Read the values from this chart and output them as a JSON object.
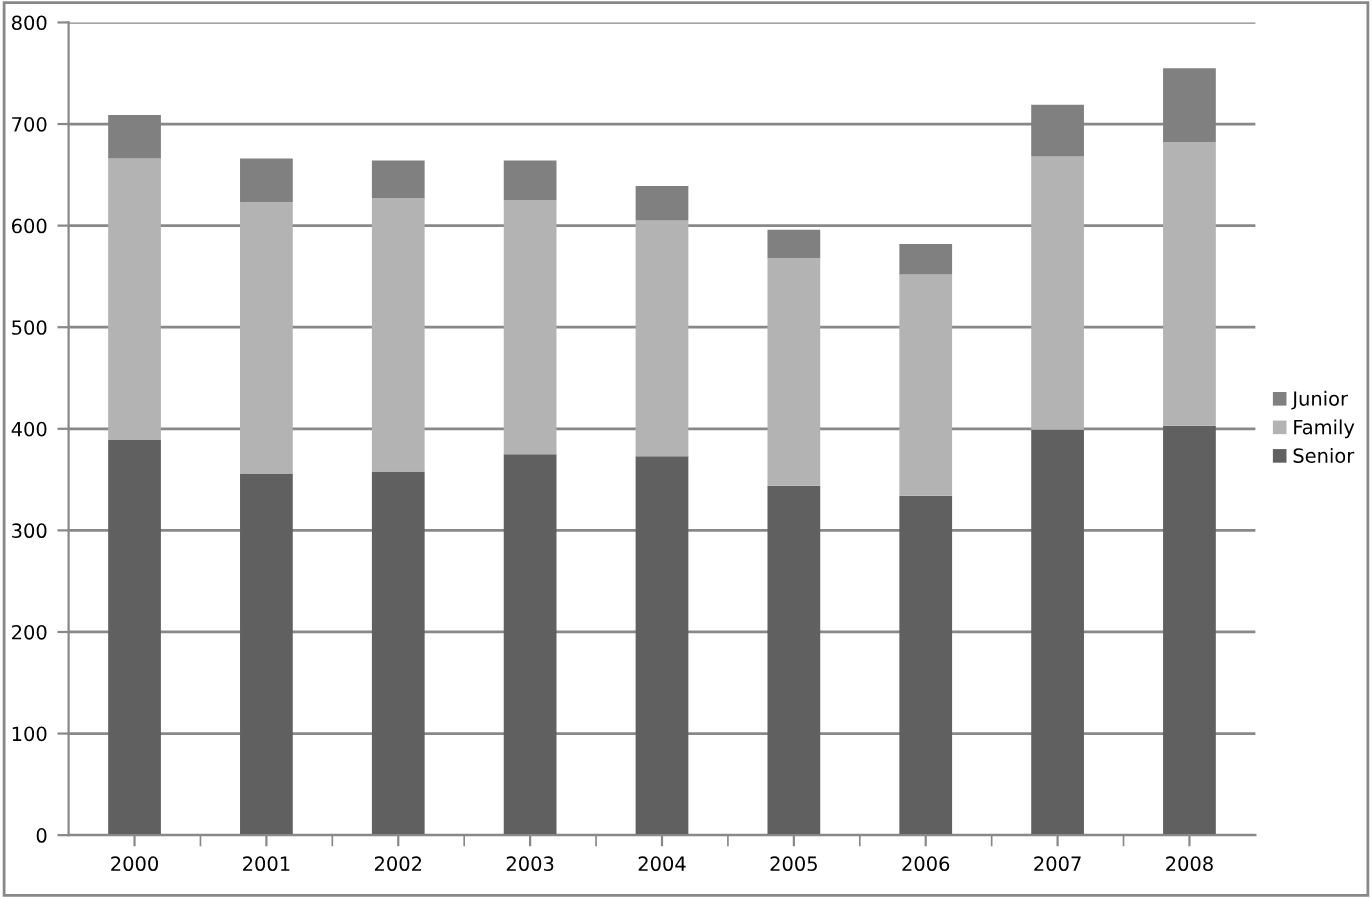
{
  "chart_data": {
    "type": "bar",
    "stacked": true,
    "categories": [
      "2000",
      "2001",
      "2002",
      "2003",
      "2004",
      "2005",
      "2006",
      "2007",
      "2008"
    ],
    "series": [
      {
        "name": "Senior",
        "color": "#606060",
        "values": [
          389,
          356,
          358,
          375,
          373,
          344,
          334,
          399,
          403
        ]
      },
      {
        "name": "Family",
        "color": "#b3b3b3",
        "values": [
          277,
          267,
          269,
          250,
          232,
          224,
          218,
          269,
          279
        ]
      },
      {
        "name": "Junior",
        "color": "#808080",
        "values": [
          43,
          43,
          37,
          39,
          34,
          28,
          30,
          51,
          73
        ]
      }
    ],
    "ylim": [
      0,
      800
    ],
    "yticks": [
      0,
      100,
      200,
      300,
      400,
      500,
      600,
      700,
      800
    ],
    "grid": "y",
    "legend": "right"
  }
}
